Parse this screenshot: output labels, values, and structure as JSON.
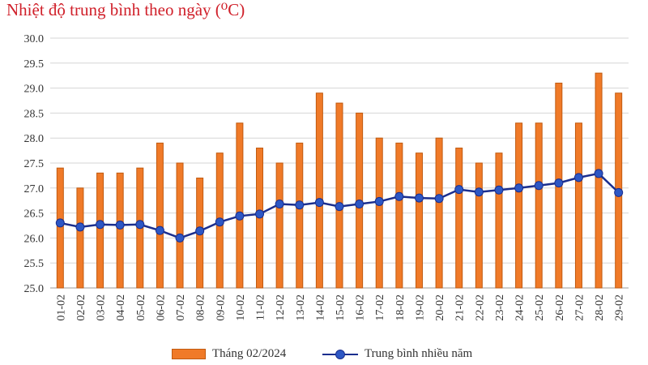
{
  "chart_data": {
    "type": "bar",
    "title": "Nhiệt độ trung bình theo ngày (⁰C)",
    "categories": [
      "01-02",
      "02-02",
      "03-02",
      "04-02",
      "05-02",
      "06-02",
      "07-02",
      "08-02",
      "09-02",
      "10-02",
      "11-02",
      "12-02",
      "13-02",
      "14-02",
      "15-02",
      "16-02",
      "17-02",
      "18-02",
      "19-02",
      "20-02",
      "21-02",
      "22-02",
      "23-02",
      "24-02",
      "25-02",
      "26-02",
      "27-02",
      "28-02",
      "29-02"
    ],
    "ylim": [
      25.0,
      30.0
    ],
    "yticks": [
      "25.0",
      "25.5",
      "26.0",
      "26.5",
      "27.0",
      "27.5",
      "28.0",
      "28.5",
      "29.0",
      "29.5",
      "30.0"
    ],
    "grid": true,
    "legend_position": "bottom",
    "series": [
      {
        "name": "Tháng 02/2024",
        "type": "bar",
        "color": "#f07a28",
        "values": [
          27.4,
          27.0,
          27.3,
          27.3,
          27.4,
          27.9,
          27.5,
          27.2,
          27.7,
          28.3,
          27.8,
          27.5,
          27.9,
          28.9,
          28.7,
          28.5,
          28.0,
          27.9,
          27.7,
          28.0,
          27.8,
          27.5,
          27.7,
          28.3,
          28.3,
          29.1,
          28.3,
          29.3,
          28.9
        ]
      },
      {
        "name": "Trung bình nhiều năm",
        "type": "line",
        "color": "#1a2e8e",
        "values": [
          26.3,
          26.22,
          26.27,
          26.26,
          26.27,
          26.15,
          26.0,
          26.14,
          26.32,
          26.44,
          26.48,
          26.68,
          26.66,
          26.71,
          26.63,
          26.68,
          26.73,
          26.83,
          26.8,
          26.79,
          26.97,
          26.92,
          26.96,
          27.0,
          27.05,
          27.1,
          27.21,
          27.29,
          26.91
        ]
      }
    ]
  }
}
